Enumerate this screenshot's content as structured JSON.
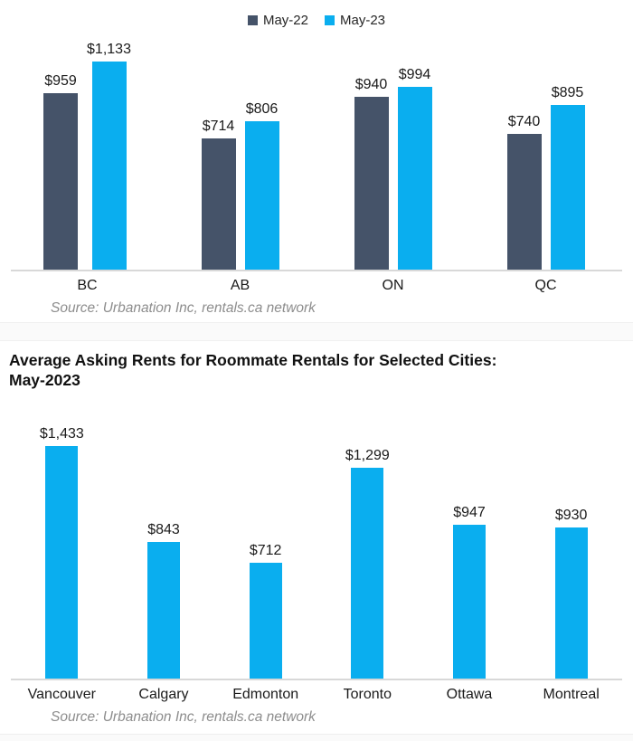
{
  "page": {
    "background": "#ffffff",
    "axis_line_color": "#d8d8d8"
  },
  "chart_data": [
    {
      "type": "bar",
      "title": "",
      "categories": [
        "BC",
        "AB",
        "ON",
        "QC"
      ],
      "series": [
        {
          "name": "May-22",
          "color": "#455369",
          "values": [
            959,
            714,
            940,
            740
          ]
        },
        {
          "name": "May-23",
          "color": "#0aaeef",
          "values": [
            1133,
            806,
            994,
            895
          ]
        }
      ],
      "data_labels": true,
      "data_label_format": "$#,###",
      "legend_position": "top",
      "grid": false,
      "ylim": [
        0,
        1200
      ],
      "source": "Source: Urbanation Inc, rentals.ca network"
    },
    {
      "type": "bar",
      "title": "Average Asking Rents for Roommate Rentals for Selected Cities: May-2023",
      "title_lines": [
        "Average Asking Rents for Roommate Rentals for Selected Cities:",
        "May-2023"
      ],
      "categories": [
        "Vancouver",
        "Calgary",
        "Edmonton",
        "Toronto",
        "Ottawa",
        "Montreal"
      ],
      "series": [
        {
          "name": "May-23",
          "color": "#0aaeef",
          "values": [
            1433,
            843,
            712,
            1299,
            947,
            930
          ]
        }
      ],
      "data_labels": true,
      "data_label_format": "$#,###",
      "legend_position": "none",
      "grid": false,
      "ylim": [
        0,
        1550
      ],
      "source": "Source: Urbanation Inc, rentals.ca network"
    }
  ]
}
